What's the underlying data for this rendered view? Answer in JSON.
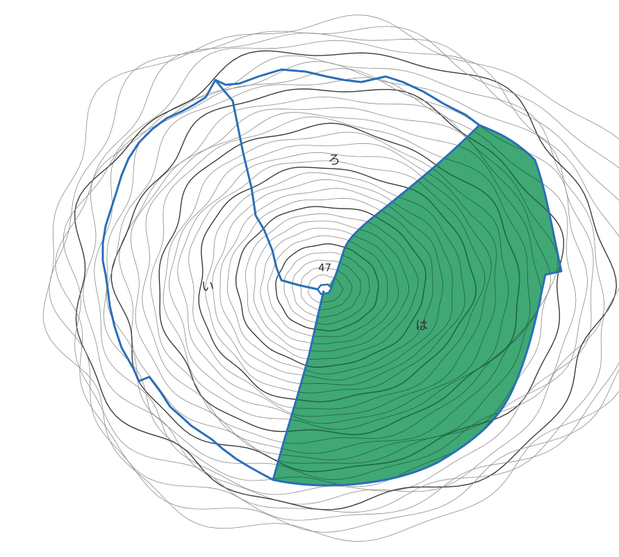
{
  "map": {
    "summit_label": "47",
    "section_labels": {
      "i": "い",
      "ro": "ろ",
      "ha": "は"
    }
  },
  "colors": {
    "background": "#ffffff",
    "contour_line": "#3a3a3a",
    "contour_thin": "#8a8a8a",
    "boundary": "#2a6fb8",
    "highlight_fill": "#3fa874",
    "highlight_stroke": "#1e6a45"
  },
  "legend_of_sections": [
    {
      "label_key": "i",
      "highlighted": false
    },
    {
      "label_key": "ro",
      "highlighted": false
    },
    {
      "label_key": "ha",
      "highlighted": true
    }
  ]
}
